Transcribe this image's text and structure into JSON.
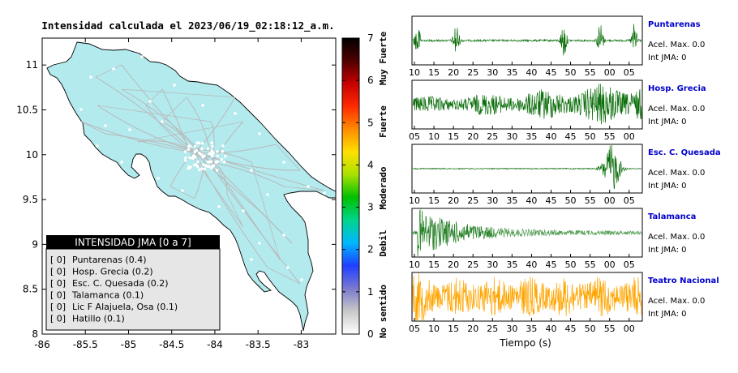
{
  "colors": {
    "land": "#b3eaee",
    "sea": "#ffffff",
    "road": "#b9b9b9",
    "station": "#ffffff",
    "trace_green": "#0a6e0a",
    "trace_light": "#4f9b4f",
    "trace_orange": "#ffa500",
    "station_name": "#0000cc",
    "legend_header_bg": "#000000",
    "legend_body_bg": "#e6e6e6"
  },
  "map": {
    "title": "Intensidad calculada el 2023/06/19_02:18:12_a.m.",
    "xlim": [
      -86,
      -82.6
    ],
    "ylim": [
      8,
      11.3
    ],
    "xticks": [
      "-86",
      "-85.5",
      "-85",
      "-84.5",
      "-84",
      "-83.5",
      "-83"
    ],
    "yticks": [
      "8",
      "8.5",
      "9",
      "9.5",
      "10",
      "10.5",
      "11"
    ],
    "legend": {
      "header": "INTENSIDAD JMA [0 a 7]",
      "items": [
        {
          "intensity": "[ 0]",
          "label": "Puntarenas (0.4)"
        },
        {
          "intensity": "[ 0]",
          "label": "Hosp. Grecia (0.2)"
        },
        {
          "intensity": "[ 0]",
          "label": "Esc. C. Quesada (0.2)"
        },
        {
          "intensity": "[ 0]",
          "label": "Talamanca (0.1)"
        },
        {
          "intensity": "[ 0]",
          "label": "Lic F Alajuela, Osa (0.1)"
        },
        {
          "intensity": "[ 0]",
          "label": "Hatillo (0.1)"
        }
      ]
    }
  },
  "colorbar": {
    "ticks": [
      "0",
      "1",
      "2",
      "3",
      "4",
      "5",
      "6",
      "7"
    ],
    "categories": [
      "No sentido",
      "Debil",
      "Moderado",
      "Fuerte",
      "Muy Fuerte"
    ],
    "stops": [
      "#ffffff",
      "#c8c8c8",
      "#7a7ad0",
      "#1f3fff",
      "#00b8ff",
      "#00d48a",
      "#00c000",
      "#a8e000",
      "#ffe000",
      "#ff8c00",
      "#ff2a00",
      "#c80000",
      "#500000",
      "#000000"
    ]
  },
  "waveforms": {
    "xlabel": "Tiempo (s)",
    "panels": [
      {
        "station": "Puntarenas",
        "accel_label": "Acel. Max. 0.0",
        "int_label": "Int JMA: 0",
        "color": "#0a6e0a",
        "ticks": [
          "10",
          "15",
          "20",
          "25",
          "30",
          "35",
          "40",
          "45",
          "50",
          "55",
          "00",
          "05"
        ],
        "style": "bursts",
        "bursts": [
          0.02,
          0.19,
          0.66,
          0.82,
          0.97
        ],
        "amp": 0.38,
        "noise": 0.02
      },
      {
        "station": "Hosp. Grecia",
        "accel_label": "Acel. Max. 0.0",
        "int_label": "Int JMA: 0",
        "color": "#0a6e0a",
        "ticks": [
          "05",
          "10",
          "15",
          "20",
          "25",
          "30",
          "35",
          "40",
          "45",
          "50",
          "55",
          "00"
        ],
        "style": "growing",
        "amp": 0.48,
        "noise": 0.05
      },
      {
        "station": "Esc. C. Quesada",
        "accel_label": "Acel. Max. 0.0",
        "int_label": "Int JMA: 0",
        "color": "#0a6e0a",
        "ticks": [
          "10",
          "15",
          "20",
          "25",
          "30",
          "35",
          "40",
          "45",
          "50",
          "55",
          "00",
          "05"
        ],
        "style": "late",
        "amp": 0.5,
        "noise": 0.01
      },
      {
        "station": "Talamanca",
        "accel_label": "Acel. Max. 0.0",
        "int_label": "Int JMA: 0",
        "color": "#0a6e0a",
        "ticks": [
          "10",
          "15",
          "20",
          "25",
          "30",
          "35",
          "40",
          "45",
          "50",
          "55",
          "00",
          "05"
        ],
        "style": "decay",
        "amp": 0.48,
        "noise": 0.04
      },
      {
        "station": "Teatro Nacional",
        "accel_label": "Acel. Max. 0.0",
        "int_label": "Int JMA: 0",
        "color": "#ffa500",
        "ticks": [
          "05",
          "10",
          "15",
          "20",
          "25",
          "30",
          "35",
          "40",
          "45",
          "50",
          "55",
          "00"
        ],
        "style": "steady",
        "amp": 0.32,
        "noise": 0.1
      }
    ]
  },
  "chart_data": [
    {
      "type": "scatter",
      "title": "Intensidad calculada el 2023/06/19_02:18:12_a.m.",
      "xlim": [
        -86,
        -82.6
      ],
      "ylim": [
        8,
        11.3
      ],
      "legend": "bottom-left",
      "series": [
        {
          "name": "INTENSIDAD JMA [0 a 7]",
          "points": [
            {
              "label": "Puntarenas",
              "value": 0.4
            },
            {
              "label": "Hosp. Grecia",
              "value": 0.2
            },
            {
              "label": "Esc. C. Quesada",
              "value": 0.2
            },
            {
              "label": "Talamanca",
              "value": 0.1
            },
            {
              "label": "Lic F Alajuela, Osa",
              "value": 0.1
            },
            {
              "label": "Hatillo",
              "value": 0.1
            }
          ]
        }
      ]
    },
    {
      "type": "line",
      "xlabel": "Tiempo (s)",
      "series": [
        {
          "name": "Puntarenas"
        },
        {
          "name": "Hosp. Grecia"
        },
        {
          "name": "Esc. C. Quesada"
        },
        {
          "name": "Talamanca"
        },
        {
          "name": "Teatro Nacional"
        }
      ]
    }
  ]
}
